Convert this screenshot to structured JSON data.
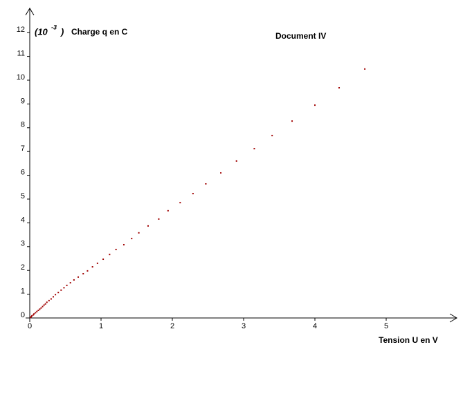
{
  "chart_data": {
    "type": "scatter",
    "title": "Document IV",
    "x_label": "Tension U en V",
    "y_label": "Charge q en C",
    "y_multiplier": [
      "(10",
      "-3",
      ")"
    ],
    "color": "#a00000",
    "xlim": [
      0,
      6
    ],
    "ylim": [
      0,
      13
    ],
    "xticks": [
      0,
      1,
      2,
      3,
      4,
      5
    ],
    "yticks": [
      0,
      1,
      2,
      3,
      4,
      5,
      6,
      7,
      8,
      9,
      10,
      11,
      12
    ],
    "x": [
      0.01,
      0.02,
      0.03,
      0.05,
      0.06,
      0.08,
      0.1,
      0.12,
      0.14,
      0.16,
      0.18,
      0.2,
      0.22,
      0.24,
      0.27,
      0.3,
      0.33,
      0.36,
      0.4,
      0.44,
      0.48,
      0.52,
      0.57,
      0.62,
      0.68,
      0.75,
      0.81,
      0.88,
      0.95,
      1.03,
      1.12,
      1.21,
      1.32,
      1.43,
      1.53,
      1.66,
      1.81,
      1.94,
      2.11,
      2.29,
      2.47,
      2.68,
      2.9,
      3.15,
      3.4,
      3.68,
      4.0,
      4.34,
      4.7
    ],
    "values": [
      0.02,
      0.05,
      0.09,
      0.13,
      0.17,
      0.22,
      0.27,
      0.32,
      0.37,
      0.42,
      0.48,
      0.54,
      0.59,
      0.66,
      0.73,
      0.8,
      0.89,
      0.98,
      1.07,
      1.17,
      1.27,
      1.37,
      1.48,
      1.6,
      1.72,
      1.86,
      1.98,
      2.15,
      2.3,
      2.47,
      2.67,
      2.88,
      3.08,
      3.34,
      3.58,
      3.87,
      4.16,
      4.51,
      4.85,
      5.23,
      5.64,
      6.1,
      6.6,
      7.12,
      7.67,
      8.28,
      8.95,
      9.68,
      10.47
    ]
  }
}
